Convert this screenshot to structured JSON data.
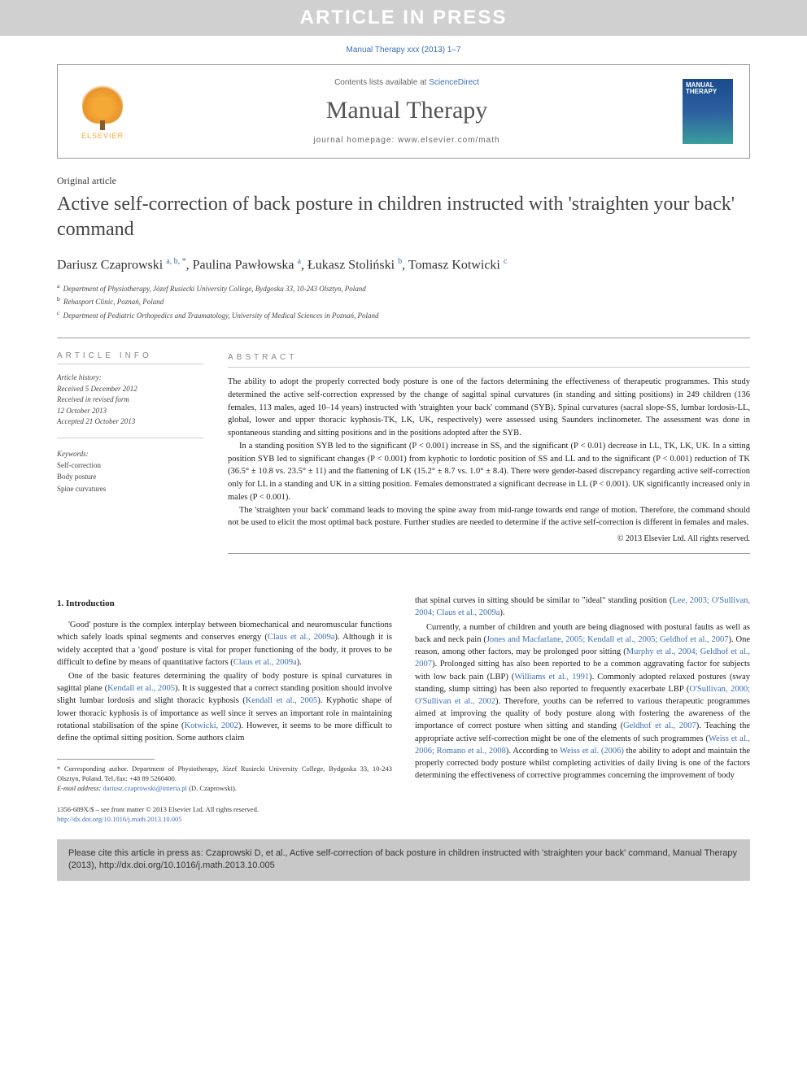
{
  "banner": "ARTICLE IN PRESS",
  "citation_top": "Manual Therapy xxx (2013) 1–7",
  "header": {
    "contents_prefix": "Contents lists available at ",
    "contents_link": "ScienceDirect",
    "journal_name": "Manual Therapy",
    "homepage_prefix": "journal homepage: ",
    "homepage_url": "www.elsevier.com/math",
    "publisher": "ELSEVIER",
    "cover_label": "MANUAL THERAPY"
  },
  "article_type": "Original article",
  "title": "Active self-correction of back posture in children instructed with 'straighten your back' command",
  "authors_html": "Dariusz Czaprowski <sup>a, b, *</sup>, Paulina Pawłowska <sup>a</sup>, Łukasz Stoliński <sup>b</sup>, Tomasz Kotwicki <sup>c</sup>",
  "affiliations": [
    {
      "sup": "a",
      "text": "Department of Physiotherapy, Józef Rusiecki University College, Bydgoska 33, 10-243 Olsztyn, Poland"
    },
    {
      "sup": "b",
      "text": "Rehasport Clinic, Poznań, Poland"
    },
    {
      "sup": "c",
      "text": "Department of Pediatric Orthopedics and Traumatology, University of Medical Sciences in Poznań, Poland"
    }
  ],
  "info_header": "ARTICLE INFO",
  "abstract_header": "ABSTRACT",
  "history": {
    "label": "Article history:",
    "lines": [
      "Received 5 December 2012",
      "Received in revised form",
      "12 October 2013",
      "Accepted 21 October 2013"
    ]
  },
  "keywords": {
    "label": "Keywords:",
    "items": [
      "Self-correction",
      "Body posture",
      "Spine curvatures"
    ]
  },
  "abstract": {
    "p1": "The ability to adopt the properly corrected body posture is one of the factors determining the effectiveness of therapeutic programmes. This study determined the active self-correction expressed by the change of sagittal spinal curvatures (in standing and sitting positions) in 249 children (136 females, 113 males, aged 10–14 years) instructed with 'straighten your back' command (SYB). Spinal curvatures (sacral slope-SS, lumbar lordosis-LL, global, lower and upper thoracic kyphosis-TK, LK, UK, respectively) were assessed using Saunders inclinometer. The assessment was done in spontaneous standing and sitting positions and in the positions adopted after the SYB.",
    "p2": "In a standing position SYB led to the significant (P < 0.001) increase in SS, and the significant (P < 0.01) decrease in LL, TK, LK, UK. In a sitting position SYB led to significant changes (P < 0.001) from kyphotic to lordotic position of SS and LL and to the significant (P < 0.001) reduction of TK (36.5° ± 10.8 vs. 23.5° ± 11) and the flattening of LK (15.2° ± 8.7 vs. 1.0° ± 8.4). There were gender-based discrepancy regarding active self-correction only for LL in a standing and UK in a sitting position. Females demonstrated a significant decrease in LL (P < 0.001). UK significantly increased only in males (P < 0.001).",
    "p3": "The 'straighten your back' command leads to moving the spine away from mid-range towards end range of motion. Therefore, the command should not be used to elicit the most optimal back posture. Further studies are needed to determine if the active self-correction is different in females and males.",
    "copyright": "© 2013 Elsevier Ltd. All rights reserved."
  },
  "body": {
    "section1_title": "1. Introduction",
    "p1_pre": "'Good' posture is the complex interplay between biomechanical and neuromuscular functions which safely loads spinal segments and conserves energy (",
    "p1_link1": "Claus et al., 2009a",
    "p1_mid": "). Although it is widely accepted that a 'good' posture is vital for proper functioning of the body, it proves to be difficult to define by means of quantitative factors (",
    "p1_link2": "Claus et al., 2009a",
    "p1_post": ").",
    "p2_pre": "One of the basic features determining the quality of body posture is spinal curvatures in sagittal plane (",
    "p2_link1": "Kendall et al., 2005",
    "p2_mid1": "). It is suggested that a correct standing position should involve slight lumbar lordosis and slight thoracic kyphosis (",
    "p2_link2": "Kendall et al., 2005",
    "p2_mid2": "). Kyphotic shape of lower thoracic kyphosis is of importance as well since it serves an important role in maintaining rotational stabilisation of the spine (",
    "p2_link3": "Kotwicki, 2002",
    "p2_post": "). However, it seems to be more difficult to define the optimal sitting position. Some authors claim",
    "p3_pre": "that spinal curves in sitting should be similar to \"ideal\" standing position (",
    "p3_link1": "Lee, 2003; O'Sullivan, 2004; Claus et al., 2009a",
    "p3_post": ").",
    "p4_pre": "Currently, a number of children and youth are being diagnosed with postural faults as well as back and neck pain (",
    "p4_link1": "Jones and Macfarlane, 2005; Kendall et al., 2005; Geldhof et al., 2007",
    "p4_mid1": "). One reason, among other factors, may be prolonged poor sitting (",
    "p4_link2": "Murphy et al., 2004; Geldhof et al., 2007",
    "p4_mid2": "). Prolonged sitting has also been reported to be a common aggravating factor for subjects with low back pain (LBP) (",
    "p4_link3": "Williams et al., 1991",
    "p4_mid3": "). Commonly adopted relaxed postures (sway standing, slump sitting) has been also reported to frequently exacerbate LBP (",
    "p4_link4": "O'Sullivan, 2000; O'Sullivan et al., 2002",
    "p4_mid4": "). Therefore, youths can be referred to various therapeutic programmes aimed at improving the quality of body posture along with fostering the awareness of the importance of correct posture when sitting and standing (",
    "p4_link5": "Geldhof et al., 2007",
    "p4_mid5": "). Teaching the appropriate active self-correction might be one of the elements of such programmes (",
    "p4_link6": "Weiss et al., 2006; Romano et al., 2008",
    "p4_mid6": "). According to ",
    "p4_link7": "Weiss et al. (2006)",
    "p4_post": " the ability to adopt and maintain the properly corrected body posture whilst completing activities of daily living is one of the factors determining the effectiveness of corrective programmes concerning the improvement of body"
  },
  "footnote": {
    "corr_label": "* Corresponding author.",
    "corr_text": " Department of Physiotherapy, Józef Rusiecki University College, Bydgoska 33, 10-243 Olsztyn, Poland. Tel./fax: +48 89 5260400.",
    "email_label": "E-mail address: ",
    "email": "dariusz.czaprowski@interia.pl",
    "email_suffix": " (D. Czaprowski)."
  },
  "issn": {
    "line1": "1356-689X/$ – see front matter © 2013 Elsevier Ltd. All rights reserved.",
    "doi": "http://dx.doi.org/10.1016/j.math.2013.10.005"
  },
  "cite_box": "Please cite this article in press as: Czaprowski D, et al., Active self-correction of back posture in children instructed with 'straighten your back' command, Manual Therapy (2013), http://dx.doi.org/10.1016/j.math.2013.10.005",
  "colors": {
    "link": "#3b6fb6",
    "banner_bg": "#d0d0d0",
    "citebox_bg": "#c8c8c8"
  }
}
